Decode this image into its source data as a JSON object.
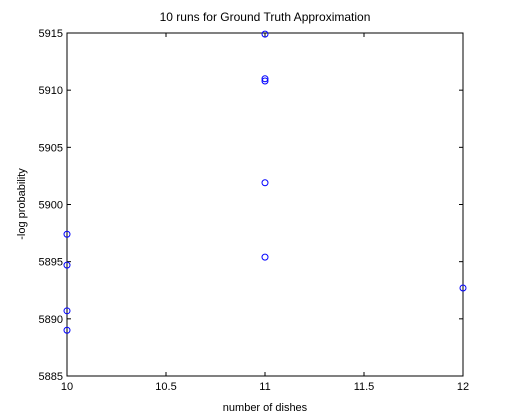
{
  "chart_data": {
    "type": "scatter",
    "title": "10 runs for Ground Truth Approximation",
    "xlabel": "number of dishes",
    "ylabel": "-log probability",
    "xlim": [
      10,
      12
    ],
    "ylim": [
      5885,
      5915
    ],
    "xticks": [
      "10",
      "10.5",
      "11",
      "11.5",
      "12"
    ],
    "yticks": [
      "5885",
      "5890",
      "5895",
      "5900",
      "5905",
      "5910",
      "5915"
    ],
    "grid": false,
    "marker": "circle",
    "marker_color": "#0000ff",
    "points": [
      {
        "x": 10,
        "y": 5897.4
      },
      {
        "x": 10,
        "y": 5894.7
      },
      {
        "x": 10,
        "y": 5890.7
      },
      {
        "x": 10,
        "y": 5889.0
      },
      {
        "x": 11,
        "y": 5914.9
      },
      {
        "x": 11,
        "y": 5911.0
      },
      {
        "x": 11,
        "y": 5910.8
      },
      {
        "x": 11,
        "y": 5901.9
      },
      {
        "x": 11,
        "y": 5895.4
      },
      {
        "x": 12,
        "y": 5892.7
      }
    ]
  }
}
